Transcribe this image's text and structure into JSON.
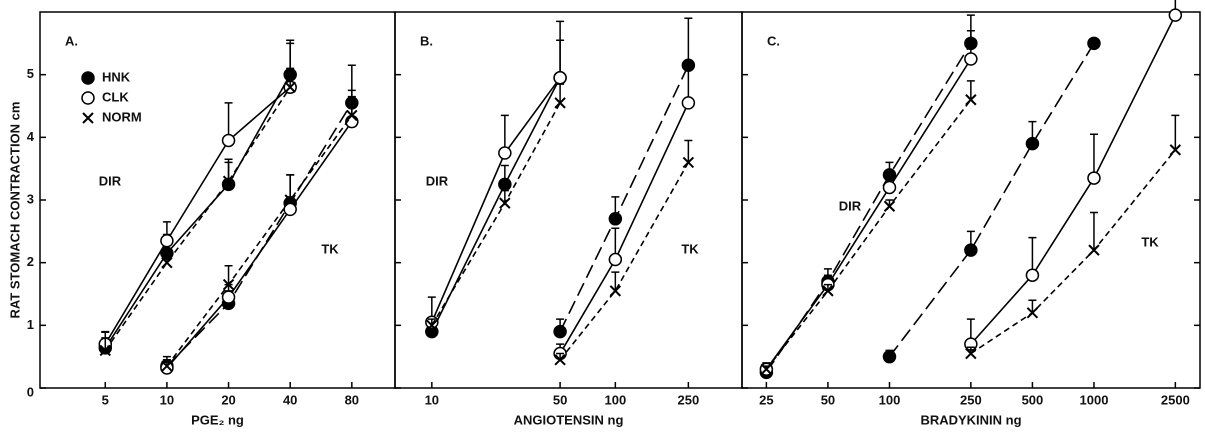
{
  "chart_data": [
    {
      "type": "line",
      "title": "A.",
      "x_label": "PGE₂ ng",
      "y_label": "RAT STOMACH CONTRACTION cm",
      "x_log": true,
      "xlim": [
        2.4,
        130
      ],
      "xticks": [
        5,
        10,
        20,
        40,
        80
      ],
      "ylim": [
        0,
        6
      ],
      "yticks": [
        0,
        1,
        2,
        3,
        4,
        5
      ],
      "annotations": [
        "DIR",
        "TK"
      ],
      "series": [
        {
          "name": "HNK",
          "marker": "filled",
          "line_style": "solid",
          "x": [
            5,
            10,
            20,
            40
          ],
          "values": [
            0.64,
            2.15,
            3.25,
            5.0
          ],
          "errors": [
            0.25,
            0.3,
            0.4,
            0.55
          ]
        },
        {
          "name": "CLK",
          "marker": "open",
          "line_style": "solid",
          "x": [
            5,
            10,
            20,
            40
          ],
          "values": [
            0.7,
            2.35,
            3.95,
            4.8
          ],
          "errors": [
            0.2,
            0.3,
            0.6,
            0.7
          ]
        },
        {
          "name": "NORM",
          "marker": "x",
          "line_style": "short-dash",
          "x": [
            5,
            10,
            20,
            40
          ],
          "values": [
            0.6,
            2.0,
            3.3,
            4.8
          ],
          "errors": [
            0.2,
            0.2,
            0.3,
            0.3
          ]
        },
        {
          "marker": "filled",
          "line_style": "long-dash",
          "x": [
            10,
            20,
            40,
            80
          ],
          "values": [
            0.35,
            1.35,
            2.95,
            4.55
          ],
          "errors": [
            0.15,
            0.2,
            0.45,
            0.6
          ]
        },
        {
          "marker": "open",
          "line_style": "solid",
          "x": [
            10,
            20,
            40,
            80
          ],
          "values": [
            0.32,
            1.45,
            2.85,
            4.25
          ],
          "errors": [
            0.1,
            0.2,
            0.2,
            0.5
          ]
        },
        {
          "marker": "x",
          "line_style": "short-dash",
          "x": [
            10,
            20,
            40,
            80
          ],
          "values": [
            0.35,
            1.65,
            3.0,
            4.35
          ],
          "errors": [
            0.1,
            0.3,
            0.4,
            0.3
          ]
        }
      ]
    },
    {
      "type": "line",
      "title": "B.",
      "x_label": "ANGIOTENSIN ng",
      "x_log": true,
      "xlim": [
        6.3,
        490
      ],
      "xticks": [
        10,
        50,
        100,
        250
      ],
      "ylim": [
        0,
        6
      ],
      "annotations": [
        "DIR",
        "TK"
      ],
      "series": [
        {
          "marker": "filled",
          "line_style": "solid",
          "x": [
            10,
            25,
            50
          ],
          "values": [
            0.9,
            3.25,
            4.95
          ],
          "errors": [
            0.2,
            0.3,
            0.6
          ]
        },
        {
          "marker": "open",
          "line_style": "solid",
          "x": [
            10,
            25,
            50
          ],
          "values": [
            1.05,
            3.75,
            4.95
          ],
          "errors": [
            0.4,
            0.6,
            0.9
          ]
        },
        {
          "marker": "x",
          "line_style": "short-dash",
          "x": [
            10,
            25,
            50
          ],
          "values": [
            1.0,
            2.95,
            4.55
          ],
          "errors": [
            0.1,
            0.2,
            0.3
          ]
        },
        {
          "marker": "filled",
          "line_style": "long-dash",
          "x": [
            50,
            100,
            250
          ],
          "values": [
            0.9,
            2.7,
            5.15
          ],
          "errors": [
            0.2,
            0.35,
            0.75
          ]
        },
        {
          "marker": "open",
          "line_style": "solid",
          "x": [
            50,
            100,
            250
          ],
          "values": [
            0.55,
            2.05,
            4.55
          ],
          "errors": [
            0.15,
            0.5,
            0.6
          ]
        },
        {
          "marker": "x",
          "line_style": "short-dash",
          "x": [
            50,
            100,
            250
          ],
          "values": [
            0.45,
            1.55,
            3.6
          ],
          "errors": [
            0.1,
            0.3,
            0.35
          ]
        }
      ]
    },
    {
      "type": "line",
      "title": "C.",
      "x_label": "BRADYKININ ng",
      "x_log": true,
      "xlim": [
        19,
        3300
      ],
      "xticks": [
        25,
        50,
        100,
        250,
        500,
        1000,
        2500
      ],
      "ylim": [
        0,
        6
      ],
      "annotations": [
        "DIR",
        "TK"
      ],
      "series": [
        {
          "marker": "filled",
          "line_style": "long-dash",
          "x": [
            25,
            50,
            100,
            250
          ],
          "values": [
            0.25,
            1.7,
            3.4,
            5.5
          ],
          "errors": [
            0.1,
            0.2,
            0.2,
            0.45
          ]
        },
        {
          "marker": "open",
          "line_style": "solid",
          "x": [
            25,
            50,
            100,
            250
          ],
          "values": [
            0.3,
            1.65,
            3.2,
            5.25
          ],
          "errors": [
            0.1,
            0.15,
            0.2,
            0.45
          ]
        },
        {
          "marker": "x",
          "line_style": "short-dash",
          "x": [
            25,
            50,
            100,
            250
          ],
          "values": [
            0.3,
            1.55,
            2.9,
            4.6
          ],
          "errors": [
            0.05,
            0.1,
            0.1,
            0.3
          ]
        },
        {
          "marker": "filled",
          "line_style": "long-dash",
          "x": [
            100,
            250,
            500,
            1000
          ],
          "values": [
            0.5,
            2.2,
            3.9,
            5.5
          ],
          "errors": [
            0.1,
            0.3,
            0.35,
            0.05
          ]
        },
        {
          "marker": "open",
          "line_style": "solid",
          "x": [
            250,
            500,
            1000,
            2500
          ],
          "values": [
            0.7,
            1.8,
            3.35,
            5.95
          ],
          "errors": [
            0.4,
            0.6,
            0.7,
            1.05
          ]
        },
        {
          "marker": "x",
          "line_style": "short-dash",
          "x": [
            250,
            500,
            1000,
            2500
          ],
          "values": [
            0.55,
            1.2,
            2.2,
            3.8
          ],
          "errors": [
            0.1,
            0.2,
            0.6,
            0.55
          ]
        }
      ]
    }
  ]
}
